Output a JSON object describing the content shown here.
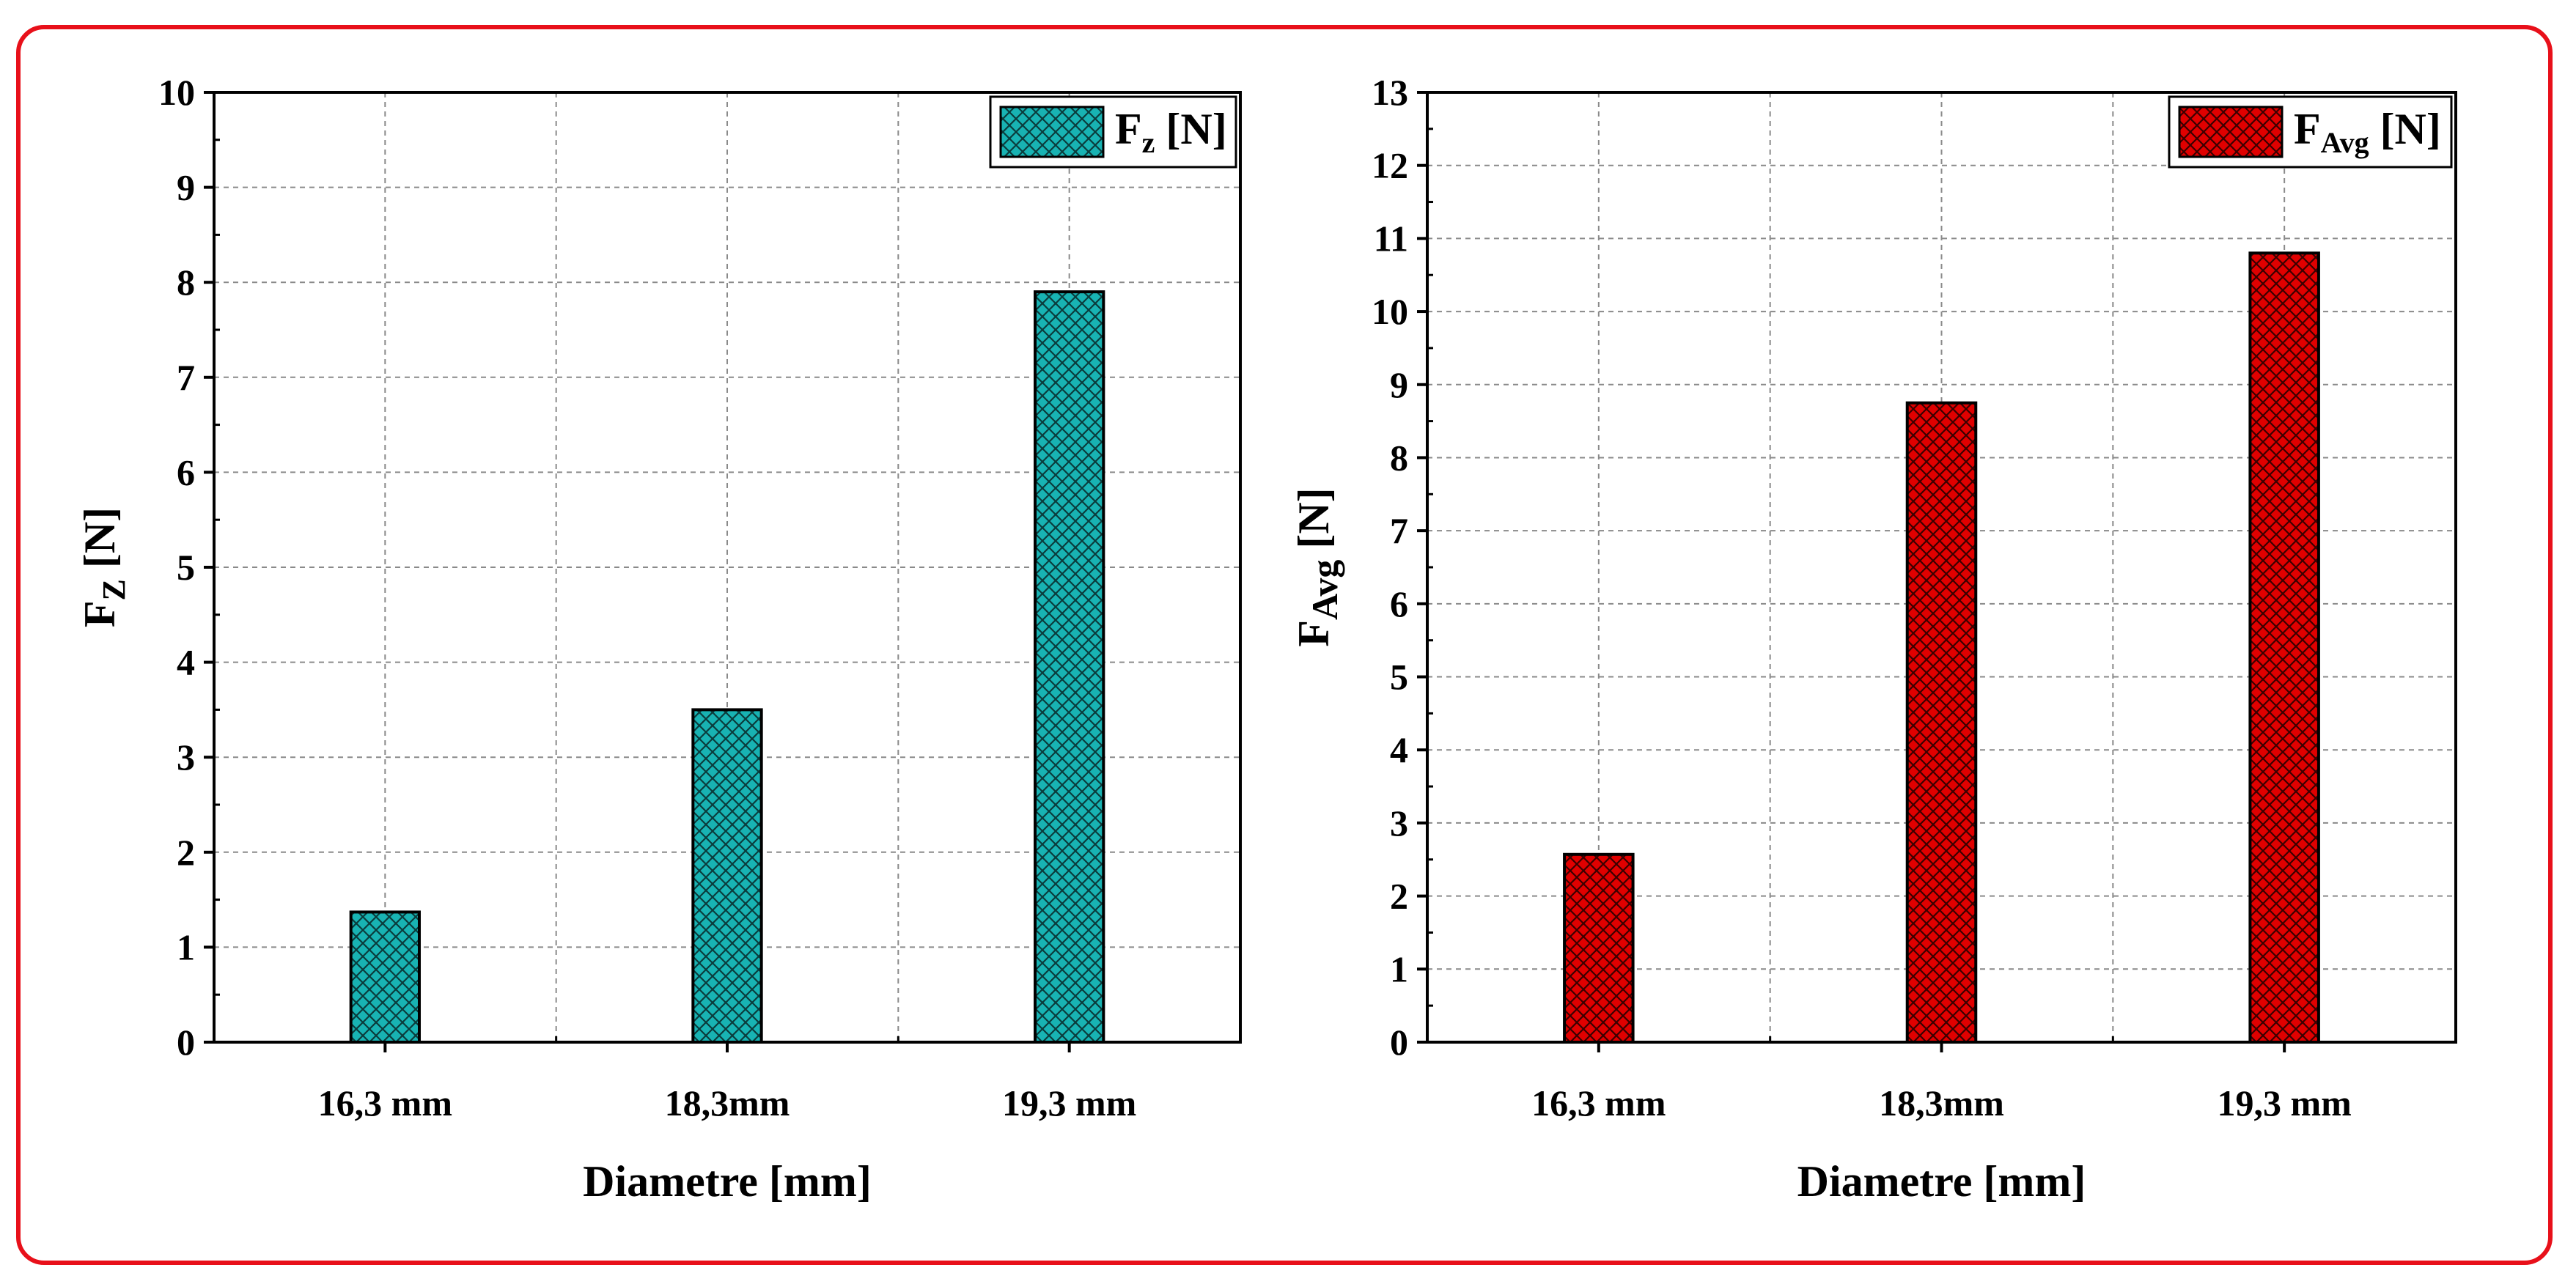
{
  "chart_data": [
    {
      "type": "bar",
      "categories": [
        "16,3 mm",
        "18,3mm",
        "19,3 mm"
      ],
      "series": [
        {
          "name_main": "F",
          "name_sub": "z",
          "name_rest": " [N]",
          "values": [
            1.37,
            3.5,
            7.9
          ],
          "color": "#18b3b3"
        }
      ],
      "xlabel": "Diametre [mm]",
      "ylabel_main": "F",
      "ylabel_sub": "Z",
      "ylabel_rest": " [N]",
      "ylim": [
        0,
        10
      ],
      "yticks": [
        "0",
        "1",
        "2",
        "3",
        "4",
        "5",
        "6",
        "7",
        "8",
        "9",
        "10"
      ],
      "grid": true,
      "legend": "top-right"
    },
    {
      "type": "bar",
      "categories": [
        "16,3 mm",
        "18,3mm",
        "19,3 mm"
      ],
      "series": [
        {
          "name_main": "F",
          "name_sub": "Avg",
          "name_rest": " [N]",
          "values": [
            2.57,
            8.75,
            10.8
          ],
          "color": "#e00000"
        }
      ],
      "xlabel": "Diametre [mm]",
      "ylabel_main": "F",
      "ylabel_sub": "Avg",
      "ylabel_rest": " [N]",
      "ylim": [
        0,
        13
      ],
      "yticks": [
        "0",
        "1",
        "2",
        "3",
        "4",
        "5",
        "6",
        "7",
        "8",
        "9",
        "10",
        "11",
        "12",
        "13"
      ],
      "grid": true,
      "legend": "top-right"
    }
  ]
}
